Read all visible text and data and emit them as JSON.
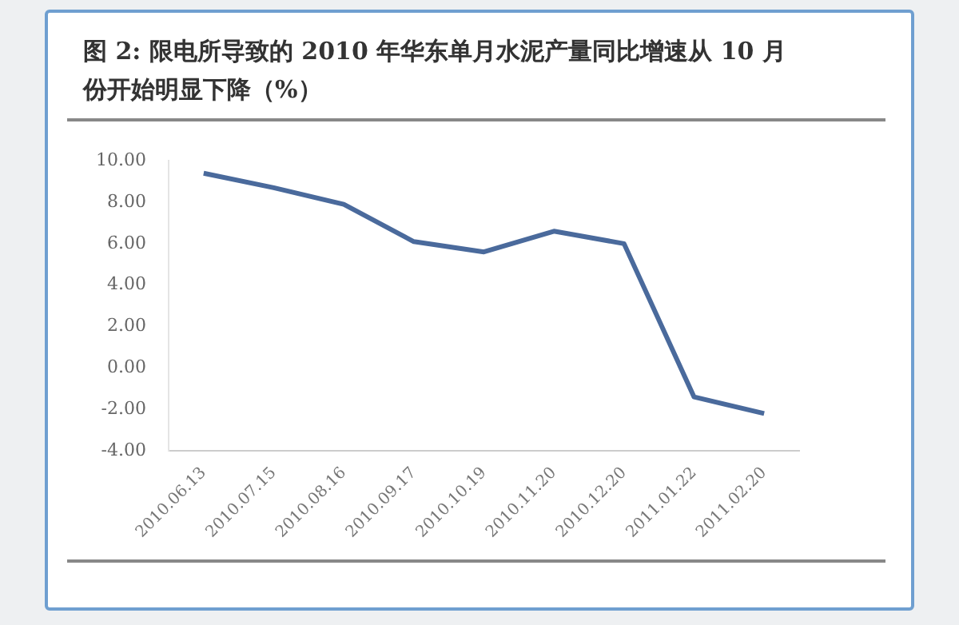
{
  "chart_data": {
    "type": "line",
    "title": "图 2: 限电所导致的 2010 年华东单月水泥产量同比增速从 10 月份开始明显下降（%）",
    "categories": [
      "2010.06.13",
      "2010.07.15",
      "2010.08.16",
      "2010.09.17",
      "2010.10.19",
      "2010.11.20",
      "2010.12.20",
      "2011.01.22",
      "2011.02.20"
    ],
    "series": [
      {
        "color": "#4a6a9c",
        "values": [
          9.4,
          8.7,
          7.9,
          6.1,
          5.6,
          6.6,
          6.0,
          -1.4,
          -2.2
        ]
      }
    ],
    "ylim": [
      -4,
      10
    ],
    "yticks": [
      {
        "value": -4,
        "label": "-4.00"
      },
      {
        "value": -2,
        "label": "-2.00"
      },
      {
        "value": 0,
        "label": "0.00"
      },
      {
        "value": 2,
        "label": "2.00"
      },
      {
        "value": 4,
        "label": "4.00"
      },
      {
        "value": 6,
        "label": "6.00"
      },
      {
        "value": 8,
        "label": "8.00"
      },
      {
        "value": 10,
        "label": "10.00"
      }
    ],
    "grid": false,
    "legend": false,
    "marker": "none",
    "line_style": "solid"
  }
}
